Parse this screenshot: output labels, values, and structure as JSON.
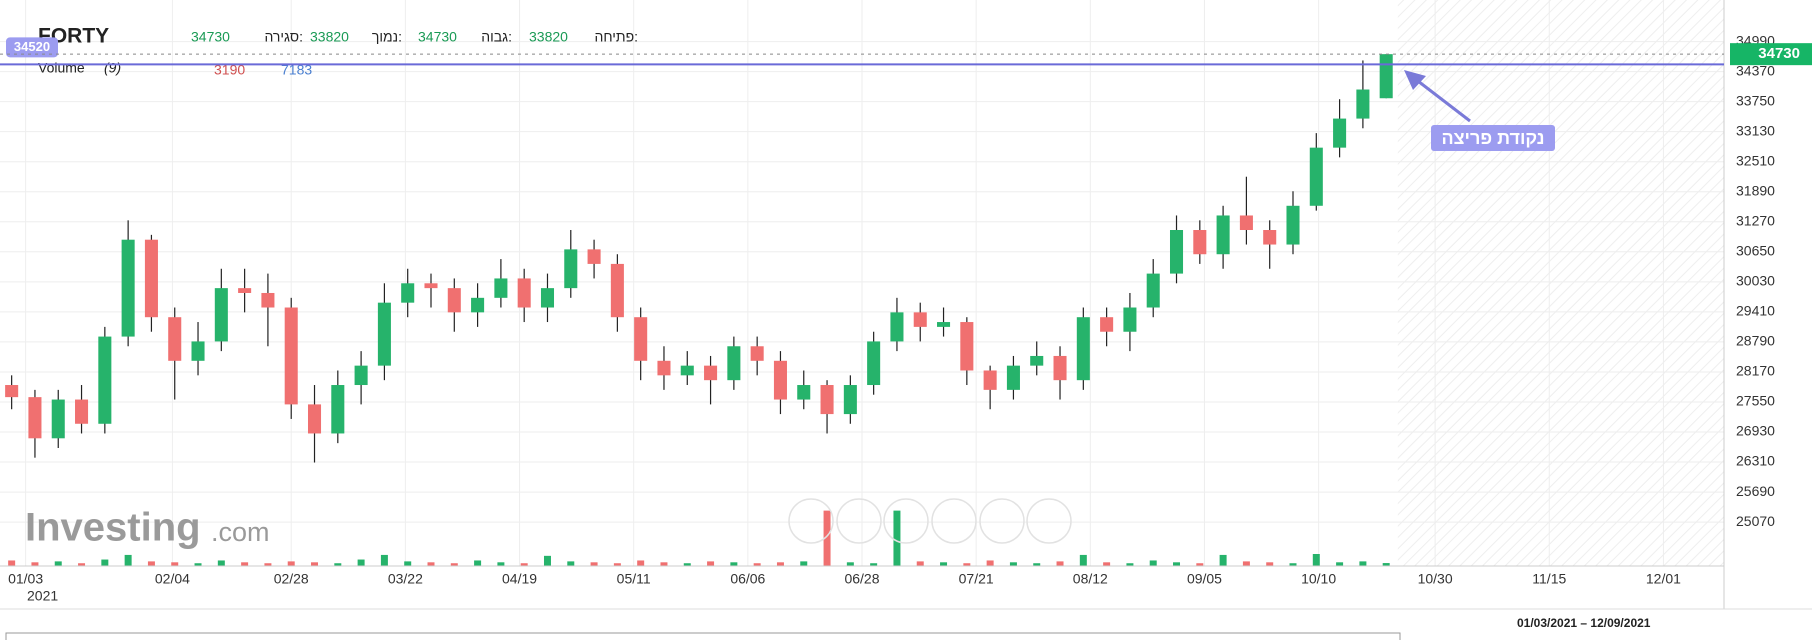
{
  "chart_data": {
    "type": "candlestick",
    "title": "FORTY",
    "header_labels": {
      "open": "פתיחה:",
      "high": "גבוה:",
      "low": "נמוך:",
      "close": "סגירה:"
    },
    "volume_label": "Volume",
    "volume_period": "(9)",
    "volume_ma": 7183,
    "open": [
      27900,
      27650,
      26800,
      27600,
      27100,
      28900,
      30900,
      29300,
      28400,
      28800,
      29900,
      29800,
      29500,
      27500,
      26900,
      27900,
      28300,
      29600,
      30000,
      29900,
      29400,
      29700,
      30100,
      29500,
      29900,
      30700,
      30400,
      29300,
      28400,
      28100,
      28300,
      28000,
      28700,
      28400,
      27600,
      27900,
      27300,
      27900,
      28800,
      29400,
      29100,
      29200,
      28200,
      27800,
      28300,
      28500,
      28000,
      29300,
      29000,
      29500,
      30200,
      31100,
      30600,
      31400,
      31100,
      30800,
      31600,
      32800,
      33400,
      33820
    ],
    "high": [
      28100,
      27800,
      27800,
      27900,
      29100,
      31300,
      31000,
      29500,
      29200,
      30300,
      30300,
      30200,
      29700,
      27900,
      28200,
      28600,
      30000,
      30300,
      30200,
      30100,
      30000,
      30500,
      30300,
      30200,
      31100,
      30900,
      30600,
      29500,
      28700,
      28600,
      28500,
      28900,
      28900,
      28600,
      28200,
      28000,
      28100,
      29000,
      29700,
      29600,
      29500,
      29300,
      28300,
      28500,
      28800,
      28700,
      29500,
      29500,
      29800,
      30500,
      31400,
      31300,
      31600,
      32200,
      31300,
      31900,
      33100,
      33800,
      34600,
      34730
    ],
    "low": [
      27400,
      26400,
      26600,
      26900,
      26900,
      28700,
      29000,
      27600,
      28100,
      28600,
      29400,
      28700,
      27200,
      26300,
      26700,
      27500,
      28000,
      29300,
      29500,
      29000,
      29100,
      29500,
      29200,
      29200,
      29700,
      30100,
      29000,
      28000,
      27800,
      27900,
      27500,
      27800,
      28100,
      27300,
      27400,
      26900,
      27100,
      27700,
      28600,
      28800,
      28900,
      27900,
      27400,
      27600,
      28100,
      27600,
      27800,
      28700,
      28600,
      29300,
      30000,
      30400,
      30300,
      30800,
      30300,
      30600,
      31500,
      32600,
      33200,
      33820
    ],
    "close": [
      27650,
      26800,
      27600,
      27100,
      28900,
      30900,
      29300,
      28400,
      28800,
      29900,
      29800,
      29500,
      27500,
      26900,
      27900,
      28300,
      29600,
      30000,
      29900,
      29400,
      29700,
      30100,
      29500,
      29900,
      30700,
      30400,
      29300,
      28400,
      28100,
      28300,
      28000,
      28700,
      28400,
      27600,
      27900,
      27300,
      27900,
      28800,
      29400,
      29100,
      29200,
      28200,
      27800,
      28300,
      28500,
      28000,
      29300,
      29000,
      29500,
      30200,
      31100,
      30600,
      31400,
      31100,
      30800,
      31600,
      32800,
      33400,
      34000,
      34730
    ],
    "volume": [
      6000,
      4000,
      5000,
      3000,
      7000,
      12000,
      5000,
      4000,
      3000,
      6000,
      4000,
      3000,
      5000,
      4000,
      3000,
      7000,
      12000,
      5000,
      4000,
      3000,
      6000,
      4000,
      3000,
      11000,
      5000,
      4000,
      3000,
      6000,
      4000,
      3000,
      5000,
      4000,
      3000,
      4000,
      5000,
      60000,
      4000,
      3000,
      60000,
      5000,
      4000,
      3000,
      6000,
      4000,
      3000,
      5000,
      12000,
      4000,
      3000,
      6000,
      4000,
      3000,
      12000,
      5000,
      4000,
      3000,
      13000,
      4000,
      5000,
      3190
    ],
    "volume_ylim": [
      0,
      65000
    ],
    "up_color": "#26b36b",
    "down_color": "#f07070",
    "xlim": [
      -0.5,
      73.5
    ],
    "xticks": [
      {
        "value": 0.6,
        "label": "01/03"
      },
      {
        "value": 6.9,
        "label": "02/04"
      },
      {
        "value": 12,
        "label": "02/28"
      },
      {
        "value": 16.9,
        "label": "03/22"
      },
      {
        "value": 21.8,
        "label": "04/19"
      },
      {
        "value": 26.7,
        "label": "05/11"
      },
      {
        "value": 31.6,
        "label": "06/06"
      },
      {
        "value": 36.5,
        "label": "06/28"
      },
      {
        "value": 41.4,
        "label": "07/21"
      },
      {
        "value": 46.3,
        "label": "08/12"
      },
      {
        "value": 51.2,
        "label": "09/05"
      },
      {
        "value": 56.1,
        "label": "10/10"
      },
      {
        "value": 61.1,
        "label": "10/30"
      },
      {
        "value": 66,
        "label": "11/15"
      },
      {
        "value": 70.9,
        "label": "12/01"
      }
    ],
    "year_label": "2021",
    "ylim": [
      24164,
      35848
    ],
    "yticks": [
      34990,
      34370,
      33750,
      33130,
      32510,
      31890,
      31270,
      30650,
      30030,
      29410,
      28790,
      28170,
      27550,
      26930,
      26310,
      25690,
      25070
    ],
    "grid": true,
    "reference_line": 34520,
    "annotation": "נקודת פריצה",
    "logo": "Investing",
    "logo_suffix": ".com",
    "date_range": "01/03/2021 – 12/09/2021"
  }
}
